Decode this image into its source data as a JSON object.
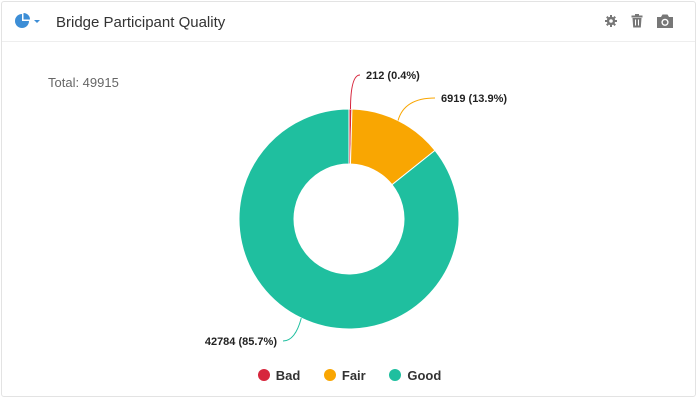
{
  "header": {
    "title": "Bridge Participant Quality",
    "icons": [
      "pie-chart-icon",
      "caret-down-icon",
      "gear-icon",
      "trash-icon",
      "camera-icon"
    ]
  },
  "total_label": "Total: 49915",
  "colors": {
    "bad": "#d7263d",
    "fair": "#f9a602",
    "good": "#1fbf9f",
    "icon": "#3d8ed6",
    "tool": "#777777"
  },
  "chart_data": {
    "type": "pie",
    "subtype": "donut",
    "total": 49915,
    "legend_position": "bottom",
    "slices": [
      {
        "name": "Bad",
        "value": 212,
        "percent": 0.4,
        "label": "212 (0.4%)",
        "color": "#d7263d"
      },
      {
        "name": "Fair",
        "value": 6919,
        "percent": 13.9,
        "label": "6919 (13.9%)",
        "color": "#f9a602"
      },
      {
        "name": "Good",
        "value": 42784,
        "percent": 85.7,
        "label": "42784 (85.7%)",
        "color": "#1fbf9f"
      }
    ]
  }
}
